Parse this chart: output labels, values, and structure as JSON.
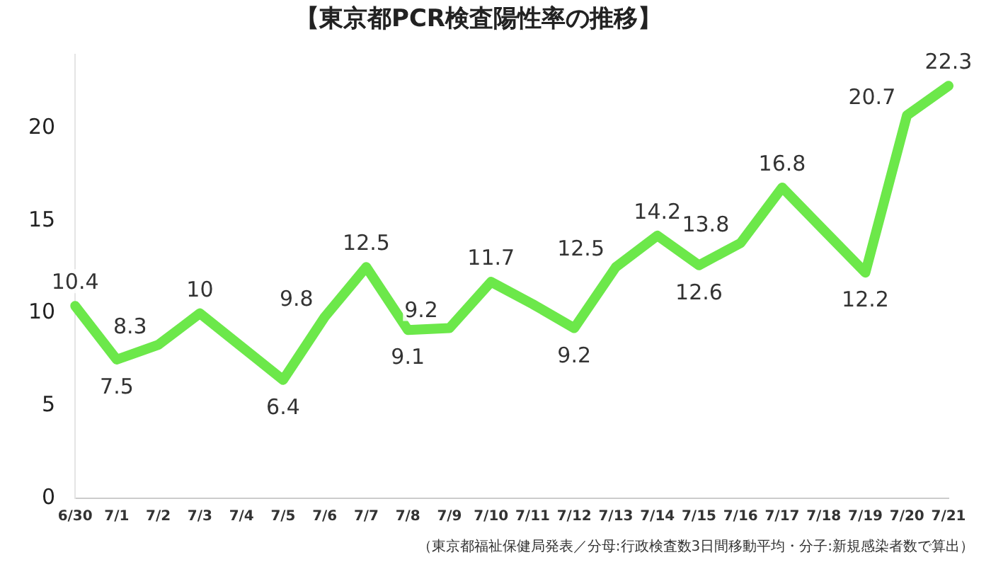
{
  "chart_data": {
    "type": "line",
    "title": "【東京都PCR検査陽性率の推移】",
    "categories": [
      "6/30",
      "7/1",
      "7/2",
      "7/3",
      "7/4",
      "7/5",
      "7/6",
      "7/7",
      "7/8",
      "7/9",
      "7/10",
      "7/11",
      "7/12",
      "7/13",
      "7/14",
      "7/15",
      "7/16",
      "7/17",
      "7/18",
      "7/19",
      "7/20",
      "7/21"
    ],
    "series": [
      {
        "color": "#6ce84a",
        "values": [
          10.4,
          7.5,
          8.3,
          10,
          8.2,
          6.4,
          9.8,
          12.5,
          9.1,
          9.2,
          11.7,
          10.5,
          9.2,
          12.5,
          14.2,
          12.6,
          13.8,
          16.8,
          14.5,
          12.2,
          20.7,
          22.3
        ],
        "value_labels": [
          "10.4",
          "7.5",
          "8.3",
          "10",
          null,
          "6.4",
          "9.8",
          "12.5",
          "9.1",
          "9.2",
          "11.7",
          null,
          "9.2",
          "12.5",
          "14.2",
          "12.6",
          "13.8",
          "16.8",
          null,
          "12.2",
          "20.7",
          "22.3"
        ]
      }
    ],
    "ylim": [
      0,
      24
    ],
    "yticks": [
      0,
      5,
      10,
      15,
      20
    ],
    "grid": false,
    "legend": false,
    "marker": "none",
    "line_style": "solid",
    "annotations": [
      "（東京都福祉保健局発表／分母:行政検査数3日間移動平均・分子:新規感染者数で算出）"
    ]
  }
}
